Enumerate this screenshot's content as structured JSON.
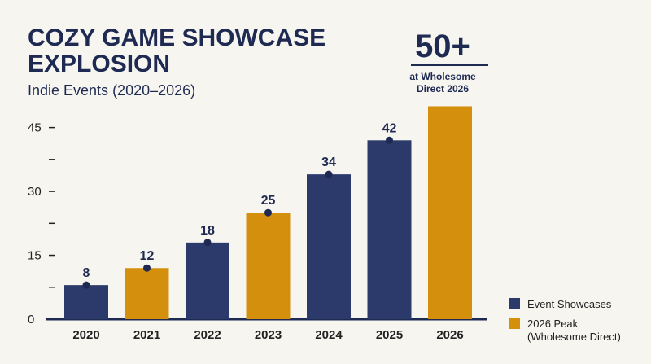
{
  "title_lines": [
    "COZY GAME SHOWCASE",
    "EXPLOSION"
  ],
  "subtitle": "Indie Events (2020–2026)",
  "callout": {
    "value": "50+",
    "lines": [
      "at Wholesome",
      "Direct 2026"
    ]
  },
  "legend": [
    {
      "label_lines": [
        "Event Showcases"
      ],
      "color": "#2b3a6b"
    },
    {
      "label_lines": [
        "2026 Peak",
        "(Wholesome Direct)"
      ],
      "color": "#d48f0c"
    }
  ],
  "chart_data": {
    "type": "bar",
    "categories": [
      "2020",
      "2021",
      "2022",
      "2023",
      "2024",
      "2025",
      "2026"
    ],
    "values": [
      8,
      12,
      18,
      25,
      34,
      42,
      50
    ],
    "data_labels": [
      "8",
      "12",
      "18",
      "25",
      "34",
      "42",
      ""
    ],
    "bar_colors": [
      "#2b3a6b",
      "#d48f0c",
      "#2b3a6b",
      "#d48f0c",
      "#2b3a6b",
      "#2b3a6b",
      "#d48f0c"
    ],
    "ylim": [
      0,
      52
    ],
    "yticks": [
      0,
      7.5,
      15,
      22.5,
      30,
      37.5,
      45
    ],
    "ytick_labels": [
      "0",
      "",
      "15",
      "",
      "30",
      "",
      "45"
    ],
    "grid": false,
    "legend_position": "bottom-right",
    "title": "COZY GAME SHOWCASE EXPLOSION",
    "subtitle": "Indie Events (2020–2026)",
    "xlabel": "",
    "ylabel": ""
  }
}
